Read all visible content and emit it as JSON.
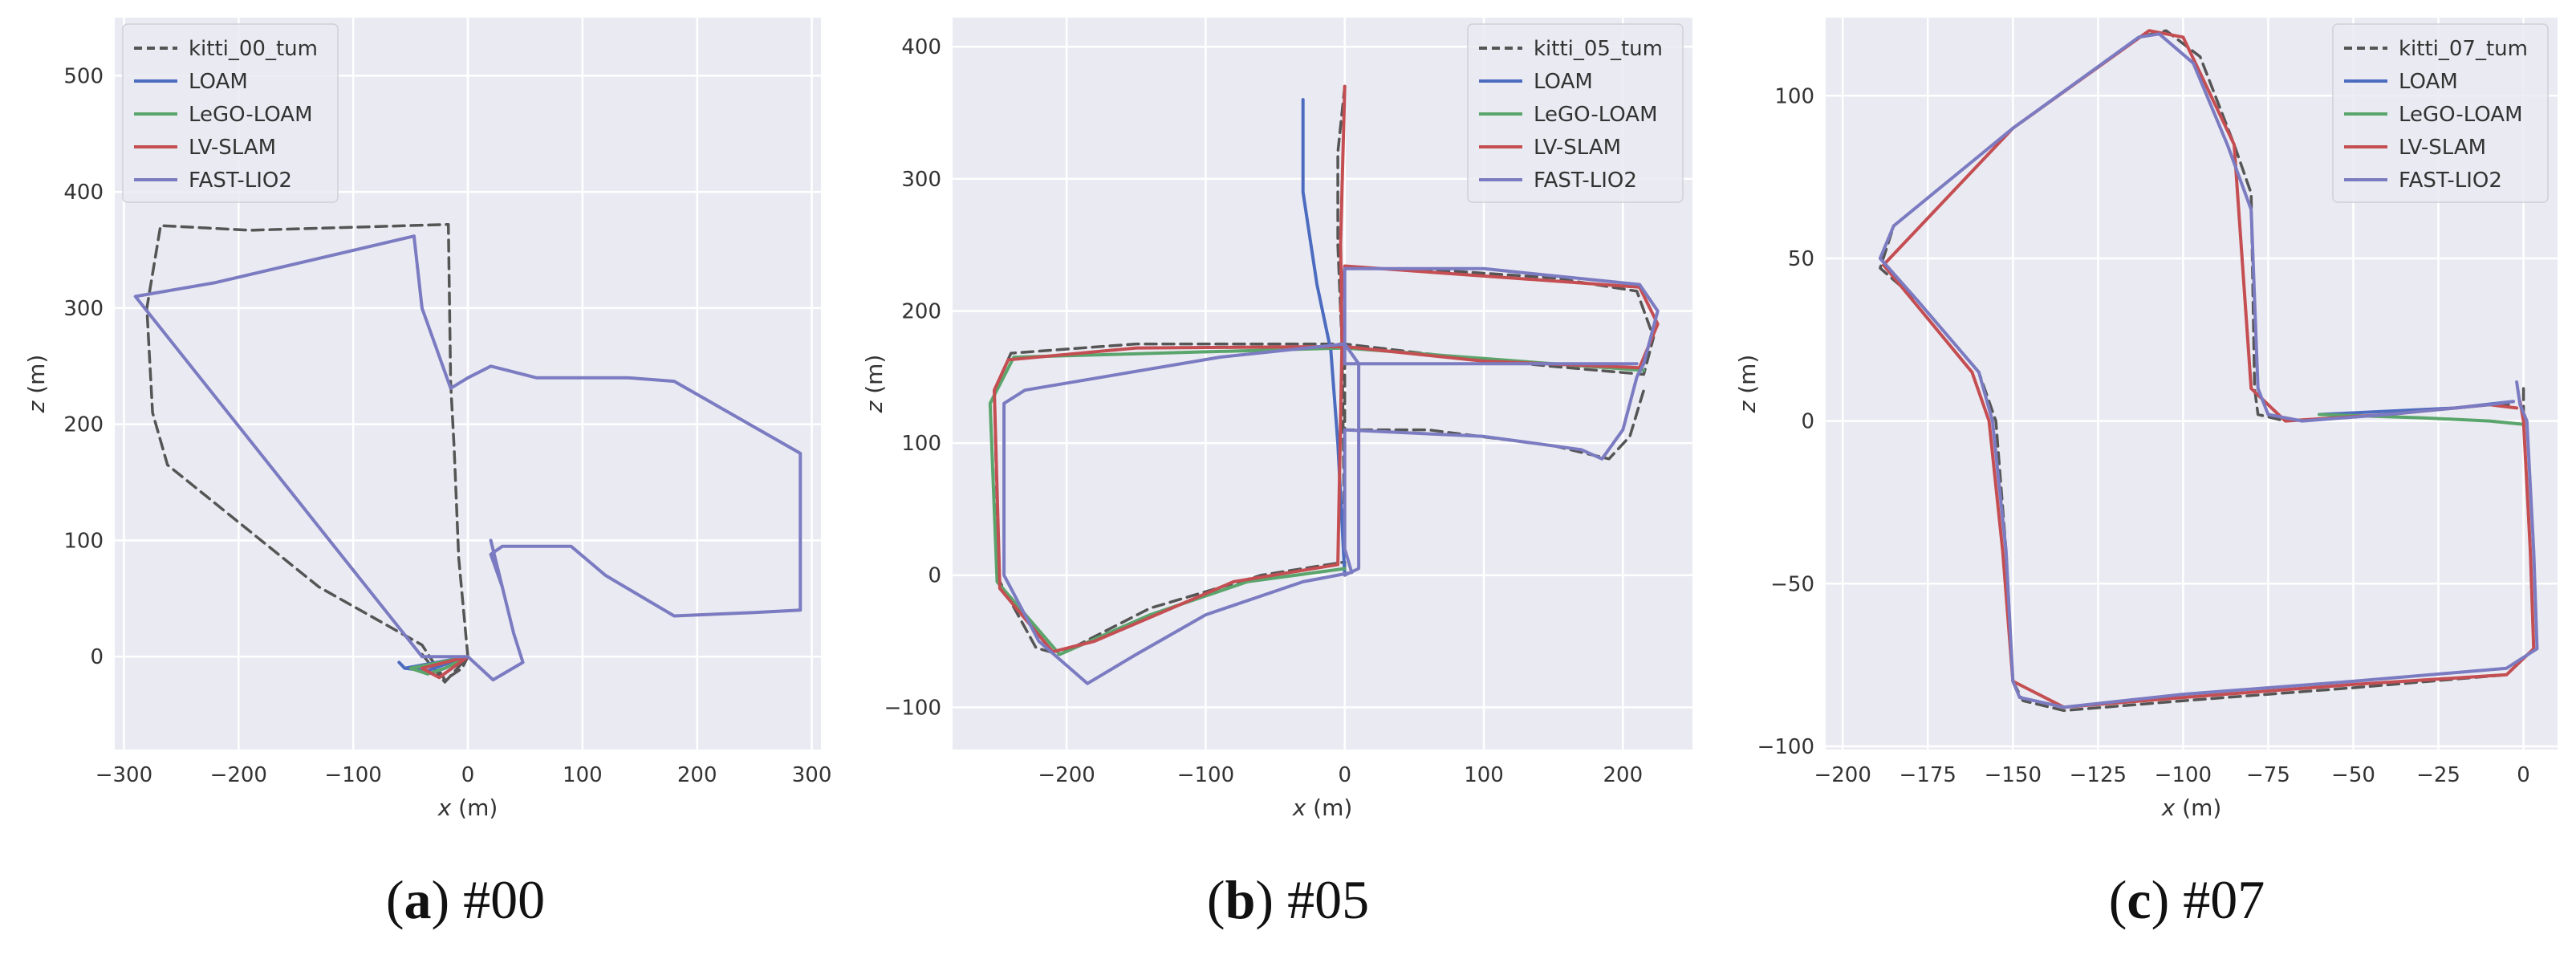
{
  "figure": {
    "captions": [
      {
        "letter": "a",
        "rest": "#00"
      },
      {
        "letter": "b",
        "rest": "#05"
      },
      {
        "letter": "c",
        "rest": "#07"
      }
    ]
  },
  "chart_data": [
    {
      "type": "line",
      "xlabel_italic": "x",
      "xlabel_unit": " (m)",
      "ylabel_italic": "z",
      "ylabel_unit": " (m)",
      "xlim": [
        -308,
        308
      ],
      "ylim": [
        -80,
        550
      ],
      "xticks": [
        -300,
        -200,
        -100,
        0,
        100,
        200,
        300
      ],
      "yticks": [
        0,
        100,
        200,
        300,
        400,
        500
      ],
      "grid": true,
      "legend": "top-left",
      "series": [
        {
          "name": "kitti_00_tum",
          "color": "#555555",
          "dashed": true,
          "points": [
            [
              0,
              0
            ],
            [
              -8,
              85
            ],
            [
              -12,
              180
            ],
            [
              -15,
              235
            ],
            [
              -17,
              372
            ],
            [
              -190,
              367
            ],
            [
              -268,
              371
            ],
            [
              -280,
              300
            ],
            [
              -275,
              210
            ],
            [
              -262,
              165
            ],
            [
              -130,
              60
            ],
            [
              -40,
              10
            ],
            [
              -20,
              -20
            ],
            [
              -5,
              -10
            ],
            [
              0,
              0
            ],
            [
              -20,
              -22
            ],
            [
              -40,
              2
            ]
          ]
        },
        {
          "name": "LOAM",
          "color": "#4c6cc0",
          "dashed": false,
          "points": [
            [
              0,
              0
            ],
            [
              -15,
              -5
            ],
            [
              -35,
              -12
            ],
            [
              -55,
              -10
            ],
            [
              -60,
              -5
            ],
            [
              -55,
              -10
            ],
            [
              0,
              0
            ]
          ]
        },
        {
          "name": "LeGO-LOAM",
          "color": "#5aa56c",
          "dashed": false,
          "points": [
            [
              0,
              0
            ],
            [
              -20,
              -10
            ],
            [
              -35,
              -15
            ],
            [
              -50,
              -10
            ],
            [
              0,
              0
            ]
          ]
        },
        {
          "name": "LV-SLAM",
          "color": "#c44e52",
          "dashed": false,
          "points": [
            [
              0,
              0
            ],
            [
              -25,
              -18
            ],
            [
              -40,
              -10
            ],
            [
              0,
              0
            ]
          ]
        },
        {
          "name": "FAST-LIO2",
          "color": "#7b7bc2",
          "dashed": false,
          "points": [
            [
              20,
              100
            ],
            [
              30,
              60
            ],
            [
              40,
              20
            ],
            [
              48,
              -5
            ],
            [
              22,
              -20
            ],
            [
              0,
              0
            ],
            [
              -40,
              0
            ],
            [
              -290,
              310
            ],
            [
              -220,
              322
            ],
            [
              -47,
              362
            ],
            [
              -40,
              300
            ],
            [
              -15,
              231
            ],
            [
              0,
              240
            ],
            [
              20,
              250
            ],
            [
              60,
              240
            ],
            [
              140,
              240
            ],
            [
              180,
              237
            ],
            [
              290,
              175
            ],
            [
              290,
              40
            ],
            [
              250,
              38
            ],
            [
              180,
              35
            ],
            [
              120,
              70
            ],
            [
              90,
              95
            ],
            [
              30,
              95
            ],
            [
              20,
              88
            ],
            [
              30,
              60
            ],
            [
              40,
              20
            ]
          ]
        }
      ]
    },
    {
      "type": "line",
      "xlabel_italic": "x",
      "xlabel_unit": " (m)",
      "ylabel_italic": "z",
      "ylabel_unit": " (m)",
      "xlim": [
        -282,
        250
      ],
      "ylim": [
        -132,
        422
      ],
      "xticks": [
        -200,
        -100,
        0,
        100,
        200
      ],
      "yticks": [
        -100,
        0,
        100,
        200,
        300,
        400
      ],
      "grid": true,
      "legend": "top-right",
      "series": [
        {
          "name": "kitti_05_tum",
          "color": "#555555",
          "dashed": true,
          "points": [
            [
              0,
              370
            ],
            [
              -5,
              320
            ],
            [
              -5,
              250
            ],
            [
              -2,
              175
            ],
            [
              -1,
              100
            ],
            [
              0,
              0
            ],
            [
              0,
              10
            ],
            [
              -60,
              0
            ],
            [
              -140,
              -25
            ],
            [
              -205,
              -60
            ],
            [
              -222,
              -55
            ],
            [
              -248,
              -5
            ],
            [
              -250,
              50
            ],
            [
              -252,
              140
            ],
            [
              -240,
              168
            ],
            [
              -150,
              175
            ],
            [
              -80,
              175
            ],
            [
              0,
              175
            ],
            [
              80,
              165
            ],
            [
              150,
              158
            ],
            [
              215,
              152
            ],
            [
              222,
              180
            ],
            [
              210,
              215
            ],
            [
              150,
              225
            ],
            [
              80,
              230
            ],
            [
              0,
              233
            ],
            [
              0,
              200
            ],
            [
              0,
              110
            ],
            [
              60,
              110
            ],
            [
              150,
              98
            ],
            [
              190,
              88
            ],
            [
              205,
              105
            ],
            [
              215,
              140
            ]
          ]
        },
        {
          "name": "LOAM",
          "color": "#4c6cc0",
          "dashed": false,
          "points": [
            [
              0,
              0
            ],
            [
              -5,
              100
            ],
            [
              -10,
              170
            ],
            [
              -20,
              220
            ],
            [
              -30,
              290
            ],
            [
              -30,
              360
            ]
          ]
        },
        {
          "name": "LeGO-LOAM",
          "color": "#5aa56c",
          "dashed": false,
          "points": [
            [
              0,
              5
            ],
            [
              -70,
              -5
            ],
            [
              -140,
              -30
            ],
            [
              -205,
              -60
            ],
            [
              -250,
              -5
            ],
            [
              -255,
              130
            ],
            [
              -238,
              165
            ],
            [
              0,
              172
            ],
            [
              150,
              160
            ],
            [
              215,
              155
            ]
          ]
        },
        {
          "name": "LV-SLAM",
          "color": "#c44e52",
          "dashed": false,
          "points": [
            [
              0,
              370
            ],
            [
              -3,
              250
            ],
            [
              -2,
              175
            ],
            [
              -5,
              8
            ],
            [
              -80,
              -5
            ],
            [
              -180,
              -50
            ],
            [
              -210,
              -58
            ],
            [
              -248,
              -10
            ],
            [
              -252,
              140
            ],
            [
              -242,
              163
            ],
            [
              -150,
              172
            ],
            [
              0,
              173
            ],
            [
              100,
              162
            ],
            [
              212,
              157
            ],
            [
              225,
              190
            ],
            [
              212,
              218
            ],
            [
              0,
              234
            ],
            [
              -3,
              200
            ]
          ]
        },
        {
          "name": "FAST-LIO2",
          "color": "#7b7bc2",
          "dashed": false,
          "points": [
            [
              0,
              0
            ],
            [
              10,
              5
            ],
            [
              10,
              160
            ],
            [
              0,
              175
            ],
            [
              -90,
              165
            ],
            [
              -230,
              140
            ],
            [
              -245,
              130
            ],
            [
              -245,
              0
            ],
            [
              -220,
              -50
            ],
            [
              -185,
              -82
            ],
            [
              -150,
              -60
            ],
            [
              -100,
              -30
            ],
            [
              -30,
              -5
            ],
            [
              5,
              2
            ],
            [
              0,
              20
            ],
            [
              0,
              110
            ],
            [
              100,
              105
            ],
            [
              170,
              95
            ],
            [
              185,
              88
            ],
            [
              200,
              110
            ],
            [
              210,
              150
            ],
            [
              215,
              160
            ],
            [
              225,
              200
            ],
            [
              212,
              220
            ],
            [
              100,
              232
            ],
            [
              0,
              232
            ],
            [
              0,
              160
            ],
            [
              100,
              160
            ],
            [
              210,
              160
            ]
          ]
        }
      ]
    },
    {
      "type": "line",
      "xlabel_italic": "x",
      "xlabel_unit": " (m)",
      "ylabel_italic": "z",
      "ylabel_unit": " (m)",
      "xlim": [
        -205,
        10
      ],
      "ylim": [
        -101,
        124
      ],
      "xticks": [
        -200,
        -175,
        -150,
        -125,
        -100,
        -75,
        -50,
        -25,
        0
      ],
      "yticks": [
        -100,
        -50,
        0,
        50,
        100
      ],
      "grid": true,
      "legend": "top-right",
      "series": [
        {
          "name": "kitti_07_tum",
          "color": "#555555",
          "dashed": true,
          "points": [
            [
              0,
              10
            ],
            [
              0,
              0
            ],
            [
              2,
              -40
            ],
            [
              3,
              -70
            ],
            [
              -5,
              -78
            ],
            [
              -50,
              -82
            ],
            [
              -100,
              -86
            ],
            [
              -135,
              -89
            ],
            [
              -147,
              -86
            ],
            [
              -150,
              -80
            ],
            [
              -152,
              -40
            ],
            [
              -155,
              0
            ],
            [
              -160,
              15
            ],
            [
              -178,
              37
            ],
            [
              -189,
              47
            ],
            [
              -185,
              60
            ],
            [
              -150,
              90
            ],
            [
              -113,
              118
            ],
            [
              -105,
              120
            ],
            [
              -95,
              112
            ],
            [
              -85,
              85
            ],
            [
              -80,
              70
            ],
            [
              -79,
              10
            ],
            [
              -78,
              2
            ],
            [
              -70,
              0
            ],
            [
              -40,
              2
            ],
            [
              -10,
              5
            ],
            [
              -3,
              5
            ]
          ]
        },
        {
          "name": "LOAM",
          "color": "#4c6cc0",
          "dashed": false,
          "points": [
            [
              -60,
              2
            ],
            [
              -20,
              4
            ],
            [
              -3,
              6
            ]
          ]
        },
        {
          "name": "LeGO-LOAM",
          "color": "#5aa56c",
          "dashed": false,
          "points": [
            [
              -60,
              2
            ],
            [
              -30,
              1
            ],
            [
              -10,
              0
            ],
            [
              0,
              -1
            ]
          ]
        },
        {
          "name": "LV-SLAM",
          "color": "#c44e52",
          "dashed": false,
          "points": [
            [
              -1,
              6
            ],
            [
              0,
              0
            ],
            [
              2,
              -40
            ],
            [
              3,
              -70
            ],
            [
              -5,
              -78
            ],
            [
              -50,
              -81
            ],
            [
              -100,
              -85
            ],
            [
              -135,
              -88
            ],
            [
              -150,
              -80
            ],
            [
              -153,
              -40
            ],
            [
              -157,
              0
            ],
            [
              -162,
              15
            ],
            [
              -188,
              48
            ],
            [
              -150,
              90
            ],
            [
              -110,
              120
            ],
            [
              -100,
              118
            ],
            [
              -85,
              85
            ],
            [
              -80,
              10
            ],
            [
              -70,
              0
            ],
            [
              -40,
              2
            ],
            [
              -10,
              5
            ],
            [
              -2,
              4
            ]
          ]
        },
        {
          "name": "FAST-LIO2",
          "color": "#7b7bc2",
          "dashed": false,
          "points": [
            [
              -2,
              12
            ],
            [
              -1,
              5
            ],
            [
              1,
              0
            ],
            [
              3,
              -40
            ],
            [
              4,
              -70
            ],
            [
              -5,
              -76
            ],
            [
              -50,
              -80
            ],
            [
              -100,
              -84
            ],
            [
              -135,
              -88
            ],
            [
              -148,
              -85
            ],
            [
              -150,
              -80
            ],
            [
              -152,
              -40
            ],
            [
              -156,
              0
            ],
            [
              -160,
              15
            ],
            [
              -178,
              37
            ],
            [
              -189,
              50
            ],
            [
              -185,
              60
            ],
            [
              -150,
              90
            ],
            [
              -113,
              118
            ],
            [
              -107,
              119
            ],
            [
              -97,
              110
            ],
            [
              -87,
              85
            ],
            [
              -80,
              65
            ],
            [
              -78,
              10
            ],
            [
              -75,
              2
            ],
            [
              -65,
              0
            ],
            [
              -40,
              2
            ],
            [
              -10,
              5
            ],
            [
              -3,
              6
            ]
          ]
        }
      ]
    }
  ]
}
